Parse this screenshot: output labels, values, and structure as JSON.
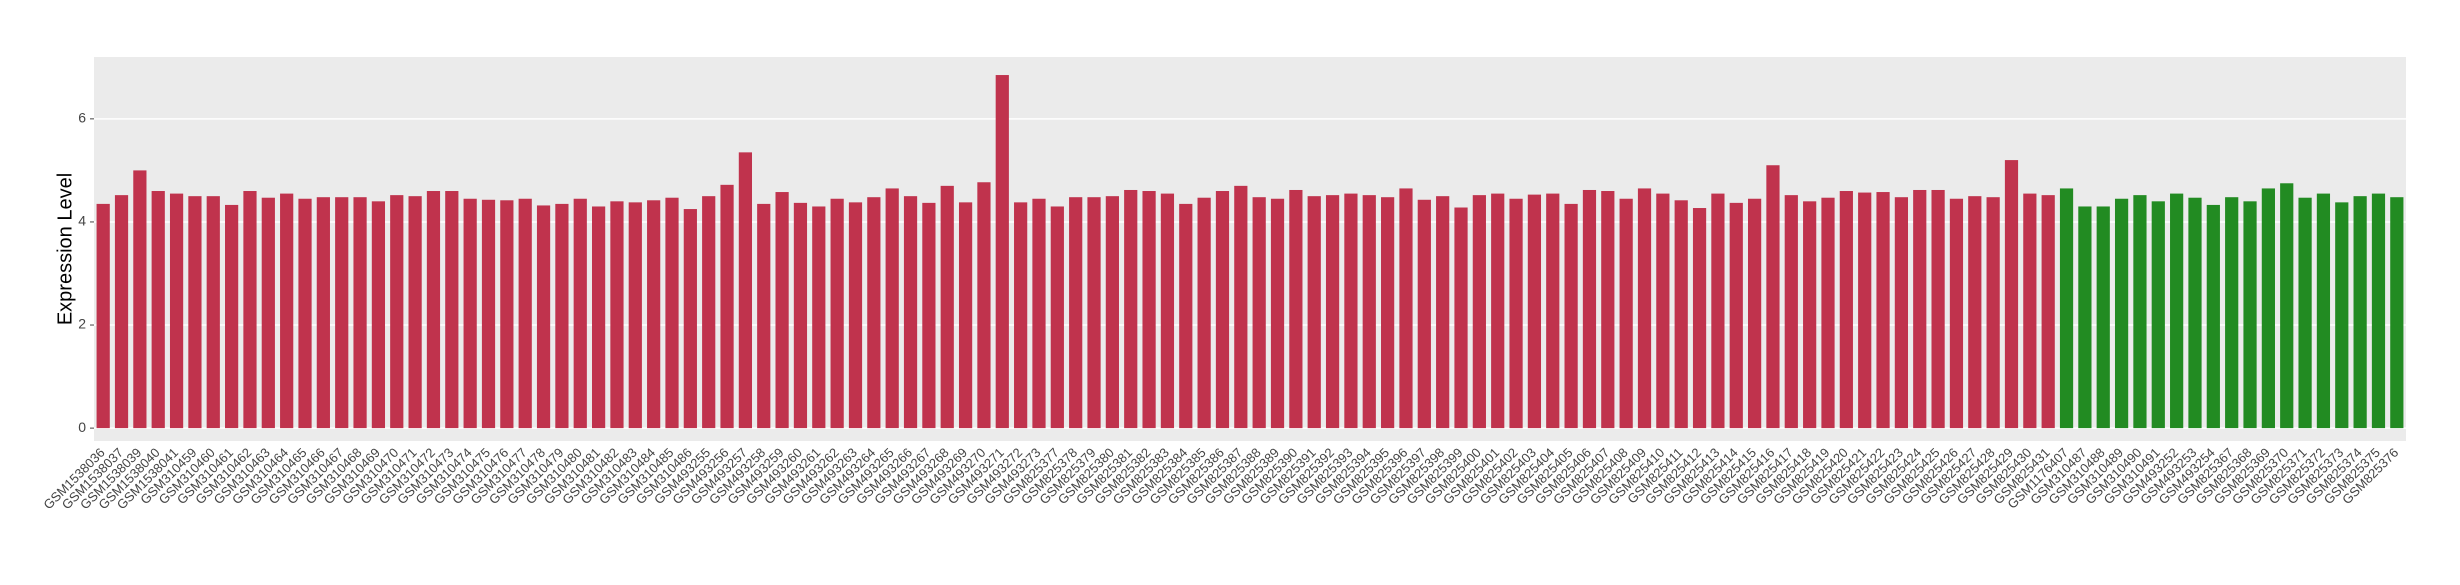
{
  "chart_data": {
    "type": "bar",
    "y_label": "Expression Level",
    "categories": [
      "GSM1538036",
      "GSM1538037",
      "GSM1538039",
      "GSM1538040",
      "GSM1538041",
      "GSM310459",
      "GSM310460",
      "GSM310461",
      "GSM310462",
      "GSM310463",
      "GSM310464",
      "GSM310465",
      "GSM310466",
      "GSM310467",
      "GSM310468",
      "GSM310469",
      "GSM310470",
      "GSM310471",
      "GSM310472",
      "GSM310473",
      "GSM310474",
      "GSM310475",
      "GSM310476",
      "GSM310477",
      "GSM310478",
      "GSM310479",
      "GSM310480",
      "GSM310481",
      "GSM310482",
      "GSM310483",
      "GSM310484",
      "GSM310485",
      "GSM310486",
      "GSM493255",
      "GSM493256",
      "GSM493257",
      "GSM493258",
      "GSM493259",
      "GSM493260",
      "GSM493261",
      "GSM493262",
      "GSM493263",
      "GSM493264",
      "GSM493265",
      "GSM493266",
      "GSM493267",
      "GSM493268",
      "GSM493269",
      "GSM493270",
      "GSM493271",
      "GSM493272",
      "GSM493273",
      "GSM825377",
      "GSM825378",
      "GSM825379",
      "GSM825380",
      "GSM825381",
      "GSM825382",
      "GSM825383",
      "GSM825384",
      "GSM825385",
      "GSM825386",
      "GSM825387",
      "GSM825388",
      "GSM825389",
      "GSM825390",
      "GSM825391",
      "GSM825392",
      "GSM825393",
      "GSM825394",
      "GSM825395",
      "GSM825396",
      "GSM825397",
      "GSM825398",
      "GSM825399",
      "GSM825400",
      "GSM825401",
      "GSM825402",
      "GSM825403",
      "GSM825404",
      "GSM825405",
      "GSM825406",
      "GSM825407",
      "GSM825408",
      "GSM825409",
      "GSM825410",
      "GSM825411",
      "GSM825412",
      "GSM825413",
      "GSM825414",
      "GSM825415",
      "GSM825416",
      "GSM825417",
      "GSM825418",
      "GSM825419",
      "GSM825420",
      "GSM825421",
      "GSM825422",
      "GSM825423",
      "GSM825424",
      "GSM825425",
      "GSM825426",
      "GSM825427",
      "GSM825428",
      "GSM825429",
      "GSM825430",
      "GSM825431",
      "GSM1176407",
      "GSM310487",
      "GSM310488",
      "GSM310489",
      "GSM310490",
      "GSM310491",
      "GSM493252",
      "GSM493253",
      "GSM493254",
      "GSM825367",
      "GSM825368",
      "GSM825369",
      "GSM825370",
      "GSM825371",
      "GSM825372",
      "GSM825373",
      "GSM825374",
      "GSM825375",
      "GSM825376"
    ],
    "values": [
      4.35,
      4.52,
      5.0,
      4.6,
      4.55,
      4.5,
      4.5,
      4.33,
      4.6,
      4.47,
      4.55,
      4.45,
      4.48,
      4.48,
      4.48,
      4.4,
      4.52,
      4.5,
      4.6,
      4.6,
      4.45,
      4.43,
      4.42,
      4.45,
      4.32,
      4.35,
      4.45,
      4.3,
      4.4,
      4.38,
      4.42,
      4.47,
      4.25,
      4.5,
      4.72,
      5.35,
      4.35,
      4.58,
      4.37,
      4.3,
      4.45,
      4.38,
      4.48,
      4.65,
      4.5,
      4.37,
      4.7,
      4.38,
      4.77,
      6.85,
      4.38,
      4.45,
      4.3,
      4.48,
      4.48,
      4.5,
      4.62,
      4.6,
      4.55,
      4.35,
      4.47,
      4.6,
      4.7,
      4.48,
      4.45,
      4.62,
      4.5,
      4.52,
      4.55,
      4.52,
      4.48,
      4.65,
      4.43,
      4.5,
      4.28,
      4.52,
      4.55,
      4.45,
      4.53,
      4.55,
      4.35,
      4.62,
      4.6,
      4.45,
      4.65,
      4.55,
      4.42,
      4.27,
      4.55,
      4.37,
      4.45,
      5.1,
      4.52,
      4.4,
      4.47,
      4.6,
      4.57,
      4.58,
      4.48,
      4.62,
      4.62,
      4.45,
      4.5,
      4.48,
      5.2,
      4.55,
      4.52,
      4.65,
      4.3,
      4.3,
      4.45,
      4.52,
      4.4,
      4.55,
      4.47,
      4.33,
      4.48,
      4.4,
      4.65,
      4.75,
      4.47,
      4.55,
      4.38,
      4.5,
      4.55,
      4.48
    ],
    "colors": [
      "#c0334d",
      "#c0334d",
      "#c0334d",
      "#c0334d",
      "#c0334d",
      "#c0334d",
      "#c0334d",
      "#c0334d",
      "#c0334d",
      "#c0334d",
      "#c0334d",
      "#c0334d",
      "#c0334d",
      "#c0334d",
      "#c0334d",
      "#c0334d",
      "#c0334d",
      "#c0334d",
      "#c0334d",
      "#c0334d",
      "#c0334d",
      "#c0334d",
      "#c0334d",
      "#c0334d",
      "#c0334d",
      "#c0334d",
      "#c0334d",
      "#c0334d",
      "#c0334d",
      "#c0334d",
      "#c0334d",
      "#c0334d",
      "#c0334d",
      "#c0334d",
      "#c0334d",
      "#c0334d",
      "#c0334d",
      "#c0334d",
      "#c0334d",
      "#c0334d",
      "#c0334d",
      "#c0334d",
      "#c0334d",
      "#c0334d",
      "#c0334d",
      "#c0334d",
      "#c0334d",
      "#c0334d",
      "#c0334d",
      "#c0334d",
      "#c0334d",
      "#c0334d",
      "#c0334d",
      "#c0334d",
      "#c0334d",
      "#c0334d",
      "#c0334d",
      "#c0334d",
      "#c0334d",
      "#c0334d",
      "#c0334d",
      "#c0334d",
      "#c0334d",
      "#c0334d",
      "#c0334d",
      "#c0334d",
      "#c0334d",
      "#c0334d",
      "#c0334d",
      "#c0334d",
      "#c0334d",
      "#c0334d",
      "#c0334d",
      "#c0334d",
      "#c0334d",
      "#c0334d",
      "#c0334d",
      "#c0334d",
      "#c0334d",
      "#c0334d",
      "#c0334d",
      "#c0334d",
      "#c0334d",
      "#c0334d",
      "#c0334d",
      "#c0334d",
      "#c0334d",
      "#c0334d",
      "#c0334d",
      "#c0334d",
      "#c0334d",
      "#c0334d",
      "#c0334d",
      "#c0334d",
      "#c0334d",
      "#c0334d",
      "#c0334d",
      "#c0334d",
      "#c0334d",
      "#c0334d",
      "#c0334d",
      "#c0334d",
      "#c0334d",
      "#c0334d",
      "#c0334d",
      "#c0334d",
      "#c0334d",
      "#228b22",
      "#228b22",
      "#228b22",
      "#228b22",
      "#228b22",
      "#228b22",
      "#228b22",
      "#228b22",
      "#228b22",
      "#228b22",
      "#228b22",
      "#228b22",
      "#228b22",
      "#228b22",
      "#228b22",
      "#228b22",
      "#228b22",
      "#228b22",
      "#228b22"
    ],
    "ylim": [
      -0.25,
      7.2
    ],
    "yticks": [
      0,
      2,
      4,
      6
    ],
    "grid": true
  }
}
